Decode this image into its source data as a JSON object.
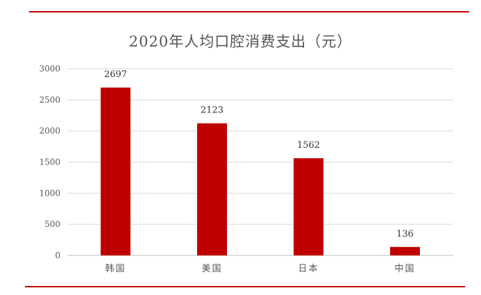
{
  "chart_data": {
    "type": "bar",
    "title": "2020年人均口腔消费支出（元）",
    "categories": [
      "韩国",
      "美国",
      "日本",
      "中国"
    ],
    "values": [
      2697,
      2123,
      1562,
      136
    ],
    "ylim": [
      0,
      3000
    ],
    "yticks": [
      0,
      500,
      1000,
      1500,
      2000,
      2500,
      3000
    ],
    "grid": true,
    "legend": "none",
    "bar_color": "#c00000"
  },
  "colors": {
    "accent": "#c00000",
    "grid": "#d9d9d9",
    "axis": "#bfbfbf"
  }
}
